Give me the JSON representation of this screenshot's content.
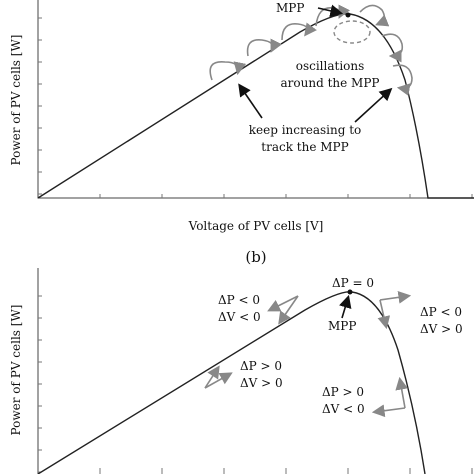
{
  "panels": [
    {
      "y_label": "Power of PV cells [W]",
      "x_label": "Voltage of PV cells [V]",
      "annotations": [
        {
          "lines": [
            "MPP"
          ]
        },
        {
          "lines": [
            "oscillations",
            "around the MPP"
          ]
        },
        {
          "lines": [
            "keep increasing to",
            "track the MPP"
          ]
        }
      ]
    },
    {
      "label": "(b)",
      "y_label": "Power of PV cells [W]",
      "annotations": [
        {
          "lines": [
            "ΔP = 0"
          ]
        },
        {
          "lines": [
            "MPP"
          ]
        },
        {
          "lines": [
            "ΔP < 0",
            "ΔV < 0"
          ]
        },
        {
          "lines": [
            "ΔP < 0",
            "ΔV > 0"
          ]
        },
        {
          "lines": [
            "ΔP > 0",
            "ΔV > 0"
          ]
        },
        {
          "lines": [
            "ΔP > 0",
            "ΔV < 0"
          ]
        }
      ]
    }
  ]
}
